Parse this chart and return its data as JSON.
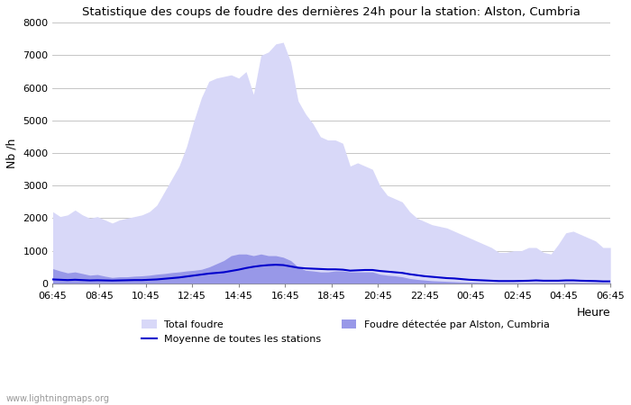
{
  "title": "Statistique des coups de foudre des dernières 24h pour la station: Alston, Cumbria",
  "xlabel": "Heure",
  "ylabel": "Nb /h",
  "ylim": [
    0,
    8000
  ],
  "yticks": [
    0,
    1000,
    2000,
    3000,
    4000,
    5000,
    6000,
    7000,
    8000
  ],
  "xtick_labels": [
    "06:45",
    "08:45",
    "10:45",
    "12:45",
    "14:45",
    "16:45",
    "18:45",
    "20:45",
    "22:45",
    "00:45",
    "02:45",
    "04:45",
    "06:45"
  ],
  "watermark": "www.lightningmaps.org",
  "legend_total": "Total foudre",
  "legend_moyenne": "Moyenne de toutes les stations",
  "legend_local": "Foudre détectée par Alston, Cumbria",
  "color_total": "#d8d8f8",
  "color_local": "#9898e8",
  "color_mean": "#0000cc",
  "total_foudre": [
    2200,
    2050,
    2100,
    2250,
    2100,
    2000,
    2050,
    1950,
    1850,
    1950,
    2000,
    2050,
    2100,
    2200,
    2400,
    2800,
    3200,
    3600,
    4200,
    5000,
    5700,
    6200,
    6300,
    6350,
    6400,
    6300,
    6500,
    5800,
    7000,
    7100,
    7350,
    7400,
    6800,
    5600,
    5200,
    4900,
    4500,
    4400,
    4400,
    4300,
    3600,
    3700,
    3600,
    3500,
    3000,
    2700,
    2600,
    2500,
    2200,
    2000,
    1900,
    1800,
    1750,
    1700,
    1600,
    1500,
    1400,
    1300,
    1200,
    1100,
    950,
    950,
    1000,
    1000,
    1100,
    1100,
    950,
    900,
    1200,
    1550,
    1600,
    1500,
    1400,
    1300,
    1100,
    1100
  ],
  "local_foudre": [
    450,
    380,
    320,
    350,
    300,
    250,
    270,
    220,
    180,
    200,
    200,
    220,
    230,
    250,
    280,
    300,
    330,
    350,
    380,
    400,
    430,
    500,
    600,
    700,
    850,
    900,
    900,
    850,
    900,
    850,
    850,
    800,
    700,
    500,
    400,
    380,
    350,
    350,
    380,
    380,
    350,
    350,
    350,
    350,
    280,
    250,
    230,
    200,
    150,
    120,
    100,
    80,
    70,
    60,
    50,
    40,
    35,
    30,
    25,
    20,
    15,
    15,
    15,
    15,
    20,
    25,
    20,
    20,
    20,
    30,
    30,
    25,
    20,
    20,
    15,
    15
  ],
  "mean_line": [
    120,
    110,
    100,
    110,
    100,
    90,
    95,
    90,
    85,
    90,
    95,
    100,
    100,
    110,
    120,
    140,
    160,
    180,
    210,
    240,
    270,
    300,
    320,
    340,
    380,
    420,
    470,
    510,
    540,
    560,
    570,
    560,
    520,
    480,
    460,
    450,
    440,
    430,
    430,
    420,
    390,
    400,
    410,
    410,
    380,
    360,
    340,
    320,
    280,
    250,
    220,
    200,
    180,
    160,
    150,
    130,
    110,
    100,
    90,
    80,
    70,
    70,
    70,
    75,
    80,
    90,
    80,
    80,
    80,
    90,
    90,
    80,
    75,
    70,
    60,
    60
  ]
}
